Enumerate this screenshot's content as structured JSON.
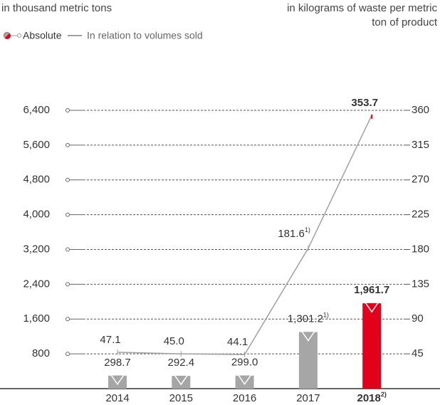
{
  "chart_data": {
    "type": "bar-line",
    "ylabel": "in thousand metric tons",
    "y2label": "in kilograms of waste per metric ton of product",
    "categories": [
      "2014",
      "2015",
      "2016",
      "2017",
      "2018"
    ],
    "category_notes": [
      null,
      null,
      null,
      null,
      "2)"
    ],
    "series": [
      {
        "name": "Absolute",
        "type": "bar",
        "colors": [
          "#a6a6a6",
          "#a6a6a6",
          "#a6a6a6",
          "#a6a6a6",
          "#e2001a"
        ],
        "values": [
          298.7,
          292.4,
          299.0,
          1301.2,
          1961.7
        ],
        "value_labels": [
          "298.7",
          "292.4",
          "299.0",
          "1,301.2",
          "1,961.7"
        ],
        "value_notes": [
          null,
          null,
          null,
          "1)",
          null
        ]
      },
      {
        "name": "In relation to volumes sold",
        "type": "line",
        "axis": "y2",
        "color": "#a0a0a0",
        "values": [
          47.1,
          45.0,
          44.1,
          181.6,
          353.7
        ],
        "value_labels": [
          "47.1",
          "45.0",
          "44.1",
          "181.6",
          "353.7"
        ],
        "value_notes": [
          null,
          null,
          null,
          "1)",
          null
        ]
      }
    ],
    "ylim": [
      0,
      6400
    ],
    "yticks": [
      {
        "value": 800,
        "label": "800"
      },
      {
        "value": 1600,
        "label": "1,600"
      },
      {
        "value": 2400,
        "label": "2,400"
      },
      {
        "value": 3200,
        "label": "3,200"
      },
      {
        "value": 4000,
        "label": "4,000"
      },
      {
        "value": 4800,
        "label": "4,800"
      },
      {
        "value": 5600,
        "label": "5,600"
      },
      {
        "value": 6400,
        "label": "6,400"
      }
    ],
    "y2lim": [
      0,
      360
    ],
    "y2ticks": [
      45,
      90,
      135,
      180,
      225,
      270,
      315,
      360
    ],
    "grid": true
  }
}
